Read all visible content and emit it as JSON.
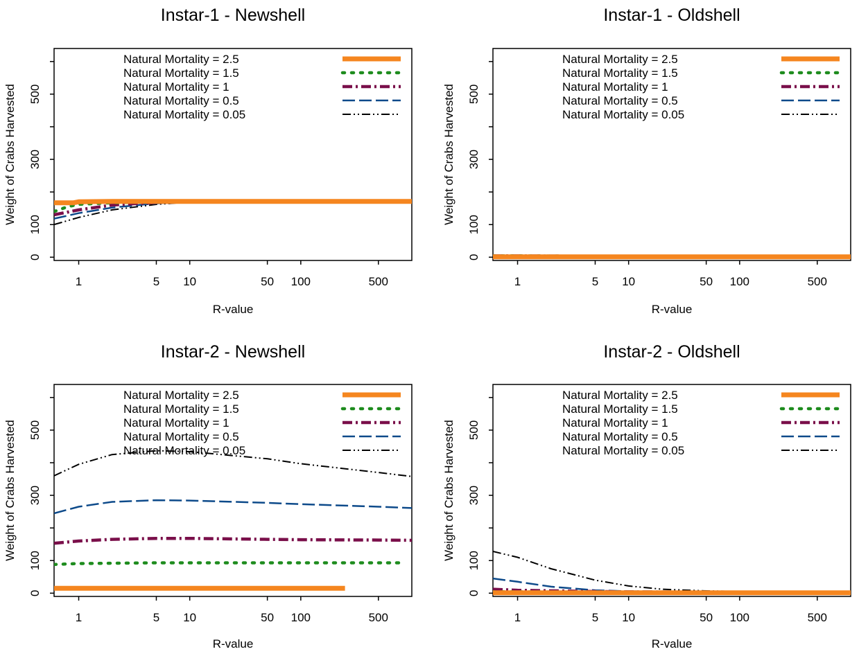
{
  "chart_data": [
    {
      "type": "line",
      "title": "Instar-1 - Newshell",
      "xlabel": "R-value",
      "ylabel": "Weight of Crabs Harvested",
      "x_scale": "log",
      "xlim": [
        0.6,
        1000
      ],
      "ylim": [
        -10,
        640
      ],
      "x_ticks": [
        1,
        5,
        10,
        50,
        100,
        500
      ],
      "y_ticks": [
        0,
        100,
        300,
        500
      ],
      "legend_position": "top-right",
      "series": [
        {
          "name": "Natural Mortality =  2.5",
          "color": "#f5861f",
          "style": "thick-solid",
          "x": [
            0.6,
            0.9,
            1,
            2,
            5,
            10,
            50,
            100,
            500,
            1000
          ],
          "y": [
            167,
            167,
            170,
            171,
            171,
            171,
            171,
            171,
            171,
            171
          ]
        },
        {
          "name": "Natural Mortality =  1.5",
          "color": "#1e8c1e",
          "style": "dotted",
          "x": [
            0.6,
            0.8,
            1,
            2,
            5,
            10,
            50,
            100,
            500,
            1000
          ],
          "y": [
            140,
            155,
            162,
            167,
            170,
            171,
            171,
            171,
            171,
            171
          ]
        },
        {
          "name": "Natural Mortality =  1",
          "color": "#7a0f4a",
          "style": "dash-dot",
          "x": [
            0.6,
            1,
            2,
            5,
            10,
            50,
            100,
            500,
            1000
          ],
          "y": [
            130,
            145,
            160,
            168,
            170,
            171,
            171,
            171,
            171
          ]
        },
        {
          "name": "Natural Mortality =  0.5",
          "color": "#0d4a8a",
          "style": "long-dash",
          "x": [
            0.6,
            1,
            2,
            5,
            10,
            50,
            100,
            500,
            1000
          ],
          "y": [
            118,
            135,
            152,
            165,
            170,
            171,
            171,
            171,
            171
          ]
        },
        {
          "name": "Natural Mortality =  0.05",
          "color": "#000000",
          "style": "dash-dot-dot",
          "x": [
            0.6,
            1,
            2,
            5,
            10,
            50,
            100,
            500,
            1000
          ],
          "y": [
            100,
            122,
            145,
            162,
            169,
            171,
            171,
            171,
            171
          ]
        }
      ]
    },
    {
      "type": "line",
      "title": "Instar-1 - Oldshell",
      "xlabel": "R-value",
      "ylabel": "Weight of Crabs Harvested",
      "x_scale": "log",
      "xlim": [
        0.6,
        1000
      ],
      "ylim": [
        -10,
        640
      ],
      "x_ticks": [
        1,
        5,
        10,
        50,
        100,
        500
      ],
      "y_ticks": [
        0,
        100,
        300,
        500
      ],
      "legend_position": "top-right",
      "series": [
        {
          "name": "Natural Mortality =  2.5",
          "color": "#f5861f",
          "style": "thick-solid",
          "x": [
            0.6,
            1,
            5,
            10,
            50,
            100,
            500,
            1000
          ],
          "y": [
            1,
            1,
            1,
            1,
            1,
            1,
            1,
            1
          ]
        },
        {
          "name": "Natural Mortality =  1.5",
          "color": "#1e8c1e",
          "style": "dotted",
          "x": [
            0.6,
            1,
            5,
            10,
            50,
            100,
            500,
            1000
          ],
          "y": [
            4,
            4,
            3,
            3,
            3,
            3,
            3,
            3
          ]
        },
        {
          "name": "Natural Mortality =  1",
          "color": "#7a0f4a",
          "style": "dash-dot",
          "x": [
            0.6,
            1,
            5,
            10,
            50,
            100,
            500,
            1000
          ],
          "y": [
            4,
            4,
            3,
            3,
            3,
            3,
            3,
            3
          ]
        },
        {
          "name": "Natural Mortality =  0.5",
          "color": "#0d4a8a",
          "style": "long-dash",
          "x": [
            0.6,
            1,
            5,
            10,
            50,
            100,
            500,
            1000
          ],
          "y": [
            3,
            3,
            3,
            3,
            3,
            3,
            3,
            3
          ]
        },
        {
          "name": "Natural Mortality =  0.05",
          "color": "#000000",
          "style": "dash-dot-dot",
          "x": [
            0.6,
            1,
            5,
            10,
            50,
            100,
            500,
            1000
          ],
          "y": [
            2,
            2,
            2,
            2,
            2,
            2,
            2,
            2
          ]
        }
      ]
    },
    {
      "type": "line",
      "title": "Instar-2 - Newshell",
      "xlabel": "R-value",
      "ylabel": "Weight of Crabs Harvested",
      "x_scale": "log",
      "xlim": [
        0.6,
        1000
      ],
      "ylim": [
        -10,
        640
      ],
      "x_ticks": [
        1,
        5,
        10,
        50,
        100,
        500
      ],
      "y_ticks": [
        0,
        100,
        300,
        500
      ],
      "legend_position": "top-right",
      "series": [
        {
          "name": "Natural Mortality =  2.5",
          "color": "#f5861f",
          "style": "thick-solid",
          "x": [
            0.6,
            1,
            5,
            10,
            50,
            100,
            250
          ],
          "y": [
            15,
            15,
            15,
            15,
            15,
            15,
            15
          ]
        },
        {
          "name": "Natural Mortality =  1.5",
          "color": "#1e8c1e",
          "style": "dotted",
          "x": [
            0.6,
            1,
            5,
            10,
            50,
            100,
            500,
            800
          ],
          "y": [
            88,
            91,
            93,
            93,
            93,
            93,
            93,
            93
          ]
        },
        {
          "name": "Natural Mortality =  1",
          "color": "#7a0f4a",
          "style": "dash-dot",
          "x": [
            0.6,
            1,
            2,
            5,
            10,
            50,
            100,
            500,
            1000
          ],
          "y": [
            153,
            160,
            165,
            168,
            168,
            165,
            164,
            163,
            162
          ]
        },
        {
          "name": "Natural Mortality =  0.5",
          "color": "#0d4a8a",
          "style": "long-dash",
          "x": [
            0.6,
            1,
            2,
            5,
            10,
            50,
            100,
            500,
            1000
          ],
          "y": [
            245,
            265,
            280,
            285,
            284,
            277,
            273,
            265,
            261
          ]
        },
        {
          "name": "Natural Mortality =  0.05",
          "color": "#000000",
          "style": "dash-dot-dot",
          "x": [
            0.6,
            1,
            2,
            5,
            10,
            50,
            100,
            500,
            1000
          ],
          "y": [
            360,
            395,
            425,
            437,
            434,
            412,
            397,
            370,
            358
          ]
        }
      ]
    },
    {
      "type": "line",
      "title": "Instar-2 - Oldshell",
      "xlabel": "R-value",
      "ylabel": "Weight of Crabs Harvested",
      "x_scale": "log",
      "xlim": [
        0.6,
        1000
      ],
      "ylim": [
        -10,
        640
      ],
      "x_ticks": [
        1,
        5,
        10,
        50,
        100,
        500
      ],
      "y_ticks": [
        0,
        100,
        300,
        500
      ],
      "legend_position": "top-right",
      "series": [
        {
          "name": "Natural Mortality =  2.5",
          "color": "#f5861f",
          "style": "thick-solid",
          "x": [
            0.6,
            1,
            5,
            10,
            50,
            100,
            500,
            1000
          ],
          "y": [
            1,
            1,
            1,
            1,
            1,
            1,
            1,
            1
          ]
        },
        {
          "name": "Natural Mortality =  1.5",
          "color": "#1e8c1e",
          "style": "dotted",
          "x": [
            0.6,
            1,
            5,
            10,
            50,
            100,
            500,
            1000
          ],
          "y": [
            4,
            4,
            3,
            3,
            3,
            3,
            3,
            3
          ]
        },
        {
          "name": "Natural Mortality =  1",
          "color": "#7a0f4a",
          "style": "dash-dot",
          "x": [
            0.6,
            1,
            5,
            10,
            50,
            100,
            500,
            1000
          ],
          "y": [
            12,
            9,
            5,
            4,
            3,
            3,
            3,
            3
          ]
        },
        {
          "name": "Natural Mortality =  0.5",
          "color": "#0d4a8a",
          "style": "long-dash",
          "x": [
            0.6,
            1,
            2,
            5,
            10,
            20,
            50,
            100,
            500,
            1000
          ],
          "y": [
            45,
            35,
            20,
            9,
            6,
            5,
            4,
            4,
            4,
            4
          ]
        },
        {
          "name": "Natural Mortality =  0.05",
          "color": "#000000",
          "style": "dash-dot-dot",
          "x": [
            0.6,
            1,
            2,
            5,
            10,
            20,
            50,
            100,
            500,
            1000
          ],
          "y": [
            128,
            110,
            75,
            40,
            22,
            12,
            7,
            5,
            4,
            4
          ]
        }
      ]
    }
  ]
}
